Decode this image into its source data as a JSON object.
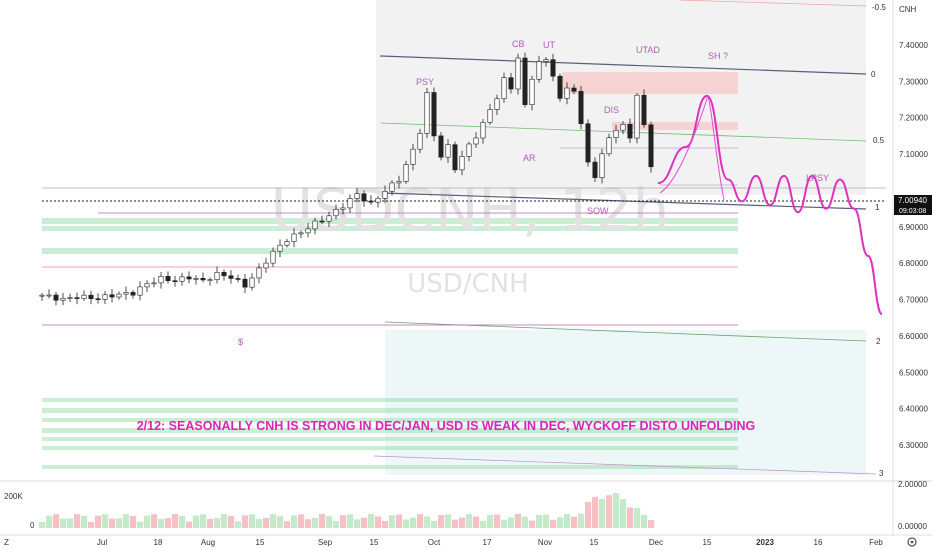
{
  "chart_data": {
    "type": "candlestick",
    "watermark": {
      "line1": "USDCNH, 12h",
      "line2": "USD/CNH"
    },
    "currency_label": "CNH",
    "last_price": {
      "value": 7.0094,
      "label": "7.00940",
      "countdown": "09:03:08"
    },
    "y_ticks": [
      {
        "v": 7.4,
        "label": "7.40000"
      },
      {
        "v": 7.3,
        "label": "7.30000"
      },
      {
        "v": 7.2,
        "label": "7.20000"
      },
      {
        "v": 7.1,
        "label": "7.10000"
      },
      {
        "v": 6.9,
        "label": "6.90000"
      },
      {
        "v": 6.8,
        "label": "6.80000"
      },
      {
        "v": 6.7,
        "label": "6.70000"
      },
      {
        "v": 6.6,
        "label": "6.60000"
      },
      {
        "v": 6.5,
        "label": "6.50000"
      },
      {
        "v": 6.4,
        "label": "6.40000"
      },
      {
        "v": 6.3,
        "label": "6.30000"
      }
    ],
    "x_ticks": [
      "Jul",
      "18",
      "Aug",
      "15",
      "Sep",
      "15",
      "Oct",
      "17",
      "Nov",
      "15",
      "Dec",
      "15",
      "2023",
      "16",
      "Feb"
    ],
    "price_series": {
      "points": [
        [
          0,
          6.712
        ],
        [
          3,
          6.7
        ],
        [
          5,
          6.708
        ],
        [
          8,
          6.703
        ],
        [
          10,
          6.712
        ],
        [
          13,
          6.718
        ],
        [
          15,
          6.743
        ],
        [
          17,
          6.758
        ],
        [
          19,
          6.752
        ],
        [
          21,
          6.762
        ],
        [
          23,
          6.751
        ],
        [
          25,
          6.77
        ],
        [
          27,
          6.762
        ],
        [
          29,
          6.738
        ],
        [
          31,
          6.782
        ],
        [
          33,
          6.83
        ],
        [
          35,
          6.865
        ],
        [
          37,
          6.885
        ],
        [
          39,
          6.91
        ],
        [
          41,
          6.93
        ],
        [
          43,
          6.958
        ],
        [
          45,
          6.99
        ],
        [
          47,
          6.962
        ],
        [
          49,
          7.0
        ],
        [
          51,
          7.03
        ],
        [
          53,
          7.11
        ],
        [
          54,
          7.163
        ],
        [
          55,
          7.265
        ],
        [
          56,
          7.15
        ],
        [
          57,
          7.096
        ],
        [
          58,
          7.12
        ],
        [
          59,
          7.06
        ],
        [
          60,
          7.095
        ],
        [
          62,
          7.15
        ],
        [
          64,
          7.22
        ],
        [
          65,
          7.258
        ],
        [
          66,
          7.305
        ],
        [
          67,
          7.28
        ],
        [
          68,
          7.368
        ],
        [
          69,
          7.23
        ],
        [
          70,
          7.31
        ],
        [
          71,
          7.355
        ],
        [
          72,
          7.355
        ],
        [
          73,
          7.32
        ],
        [
          74,
          7.25
        ],
        [
          75,
          7.28
        ],
        [
          76,
          7.278
        ],
        [
          77,
          7.178
        ],
        [
          78,
          7.08
        ],
        [
          79,
          7.038
        ],
        [
          80,
          7.095
        ],
        [
          81,
          7.15
        ],
        [
          82,
          7.165
        ],
        [
          83,
          7.178
        ],
        [
          84,
          7.15
        ],
        [
          85,
          7.258
        ],
        [
          86,
          7.18
        ],
        [
          87,
          7.07
        ],
        [
          88,
          7.025
        ]
      ],
      "volume_axis_labels": [
        "200K",
        "0"
      ],
      "volume_range_labels": [
        "2.00000",
        "0.00000"
      ]
    },
    "fib_levels": [
      "0",
      "0.5",
      "1",
      "2",
      "3",
      "-0.5"
    ],
    "annotations": [
      "CB",
      "UT",
      "UTAD",
      "SH ?",
      "PSY",
      "DIS",
      "AR",
      "SOW",
      "LPSY",
      "$"
    ],
    "note": "2/12: SEASONALLY CNH IS STRONG IN DEC/JAN, USD IS WEAK IN DEC, WYCKOFF DISTO UNFOLDING",
    "projection": {
      "points": [
        [
          88,
          7.02
        ],
        [
          92,
          7.12
        ],
        [
          95,
          7.26
        ],
        [
          98,
          7.03
        ],
        [
          100,
          6.97
        ],
        [
          102,
          7.04
        ],
        [
          104,
          6.96
        ],
        [
          106,
          7.04
        ],
        [
          108,
          6.94
        ],
        [
          110,
          7.04
        ],
        [
          112,
          6.95
        ],
        [
          114,
          7.03
        ],
        [
          116,
          6.95
        ],
        [
          118,
          6.82
        ],
        [
          120,
          6.66
        ]
      ]
    },
    "colors": {
      "up": "#26a69a",
      "down": "#ef5350",
      "projection": "#e030c0",
      "annotation": "#b05ab8",
      "note": "#e020b8"
    },
    "legend_position": "none",
    "grid": false
  },
  "footer": {
    "tz_icon_label": "Z",
    "icon_label": "G"
  }
}
